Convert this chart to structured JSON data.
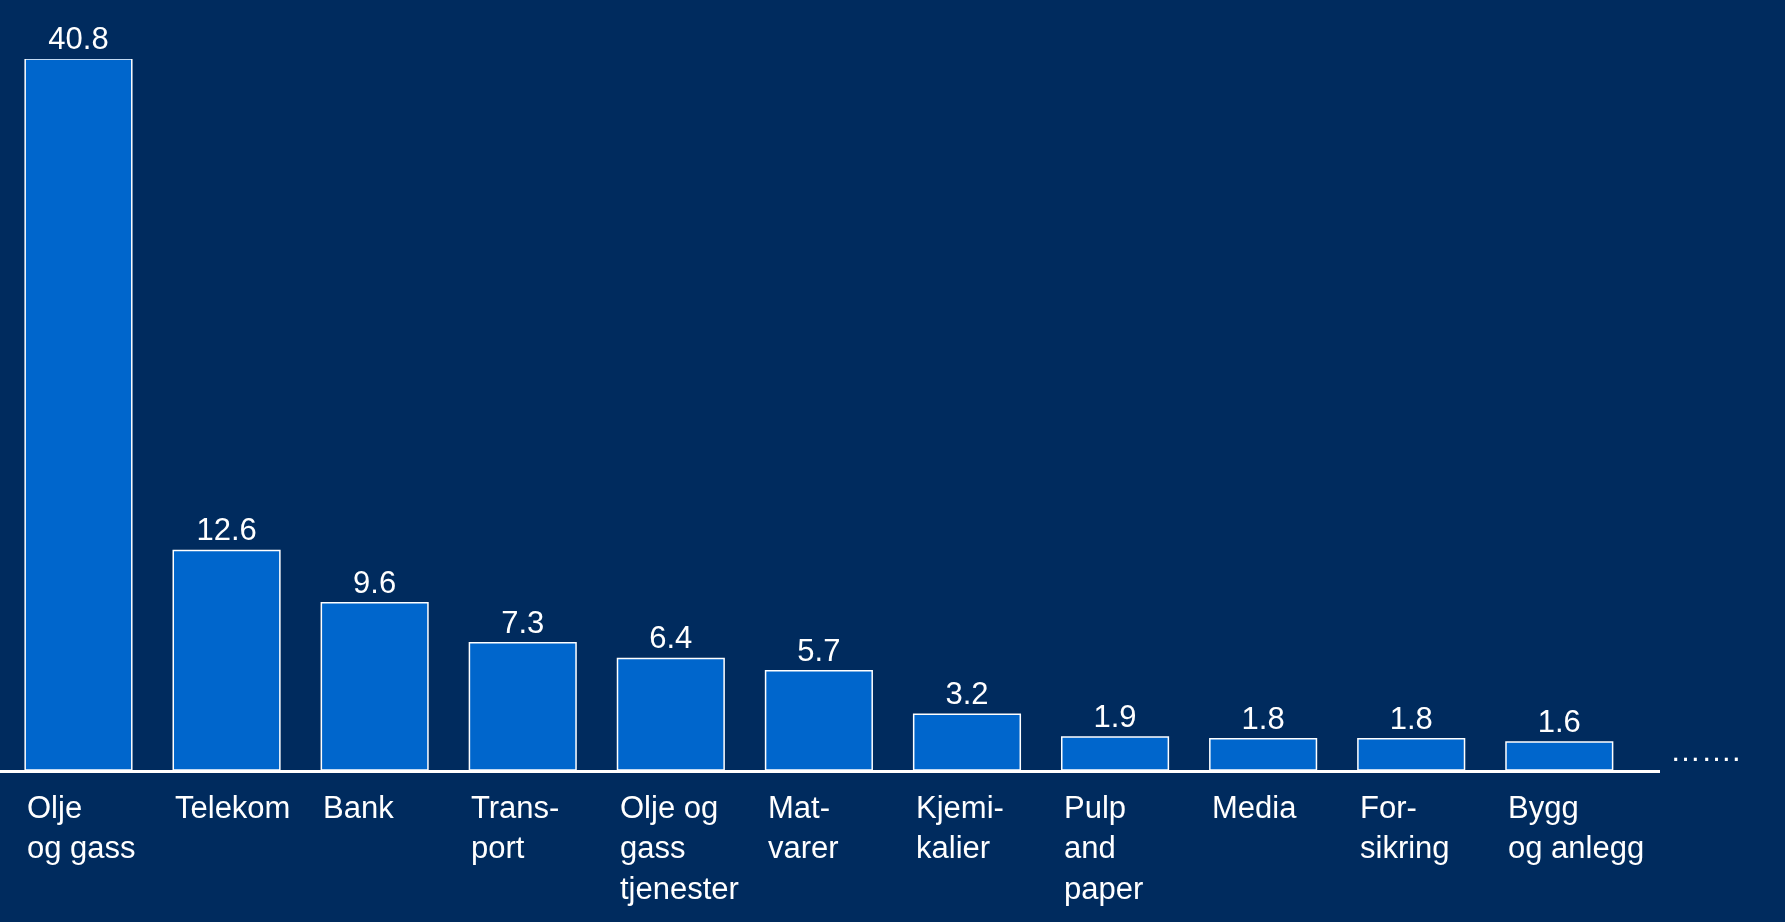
{
  "chart_data": {
    "type": "bar",
    "categories": [
      "Olje\nog gass",
      "Telekom",
      "Bank",
      "Trans-\nport",
      "Olje og\ngass\ntjenester",
      "Mat-\nvarer",
      "Kjemi-\nkalier",
      "Pulp\nand\npaper",
      "Media",
      "For-\nsikring",
      "Bygg\nog anlegg"
    ],
    "values": [
      40.8,
      12.6,
      9.6,
      7.3,
      6.4,
      5.7,
      3.2,
      1.9,
      1.8,
      1.8,
      1.6
    ],
    "color": "#0066cc",
    "data_labels": true,
    "grid": false,
    "legend": false,
    "annotations": [
      "……."
    ]
  }
}
